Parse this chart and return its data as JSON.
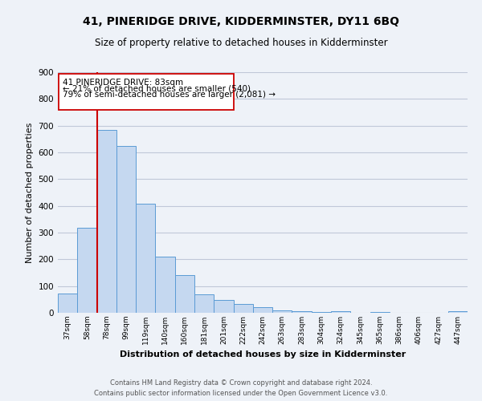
{
  "title": "41, PINERIDGE DRIVE, KIDDERMINSTER, DY11 6BQ",
  "subtitle": "Size of property relative to detached houses in Kidderminster",
  "xlabel": "Distribution of detached houses by size in Kidderminster",
  "ylabel": "Number of detached properties",
  "footer_line1": "Contains HM Land Registry data © Crown copyright and database right 2024.",
  "footer_line2": "Contains public sector information licensed under the Open Government Licence v3.0.",
  "categories": [
    "37sqm",
    "58sqm",
    "78sqm",
    "99sqm",
    "119sqm",
    "140sqm",
    "160sqm",
    "181sqm",
    "201sqm",
    "222sqm",
    "242sqm",
    "263sqm",
    "283sqm",
    "304sqm",
    "324sqm",
    "345sqm",
    "365sqm",
    "386sqm",
    "406sqm",
    "427sqm",
    "447sqm"
  ],
  "values": [
    72,
    318,
    683,
    625,
    408,
    210,
    140,
    70,
    47,
    33,
    20,
    10,
    7,
    3,
    5,
    0,
    4,
    0,
    0,
    0,
    5
  ],
  "bar_color": "#c5d8f0",
  "bar_edge_color": "#5b9bd5",
  "grid_color": "#c0c8d8",
  "background_color": "#eef2f8",
  "annotation_box_text_line1": "41 PINERIDGE DRIVE: 83sqm",
  "annotation_box_text_line2": "← 21% of detached houses are smaller (540)",
  "annotation_box_text_line3": "79% of semi-detached houses are larger (2,081) →",
  "vline_x_idx": 2,
  "vline_color": "#cc0000",
  "ylim": [
    0,
    900
  ],
  "yticks": [
    0,
    100,
    200,
    300,
    400,
    500,
    600,
    700,
    800,
    900
  ]
}
